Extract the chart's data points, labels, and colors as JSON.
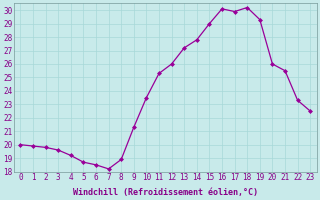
{
  "x": [
    0,
    1,
    2,
    3,
    4,
    5,
    6,
    7,
    8,
    9,
    10,
    11,
    12,
    13,
    14,
    15,
    16,
    17,
    18,
    19,
    20,
    21,
    22,
    23
  ],
  "y": [
    20.0,
    19.9,
    19.8,
    19.6,
    19.2,
    18.7,
    18.5,
    18.2,
    18.9,
    21.3,
    23.5,
    25.3,
    26.0,
    27.2,
    27.8,
    29.0,
    30.1,
    29.9,
    30.2,
    29.3,
    26.0,
    25.5,
    23.3,
    22.5
  ],
  "line_color": "#990099",
  "marker": "D",
  "marker_size": 2.0,
  "bg_color": "#c8eaea",
  "grid_color": "#a8d8d8",
  "xlabel": "Windchill (Refroidissement éolien,°C)",
  "xlabel_color": "#880088",
  "tick_color": "#880088",
  "ylim": [
    18,
    30.5
  ],
  "yticks": [
    18,
    19,
    20,
    21,
    22,
    23,
    24,
    25,
    26,
    27,
    28,
    29,
    30
  ],
  "xlim": [
    -0.5,
    23.5
  ],
  "xticks": [
    0,
    1,
    2,
    3,
    4,
    5,
    6,
    7,
    8,
    9,
    10,
    11,
    12,
    13,
    14,
    15,
    16,
    17,
    18,
    19,
    20,
    21,
    22,
    23
  ],
  "tick_fontsize": 5.5,
  "xlabel_fontsize": 6.0,
  "linewidth": 0.9
}
